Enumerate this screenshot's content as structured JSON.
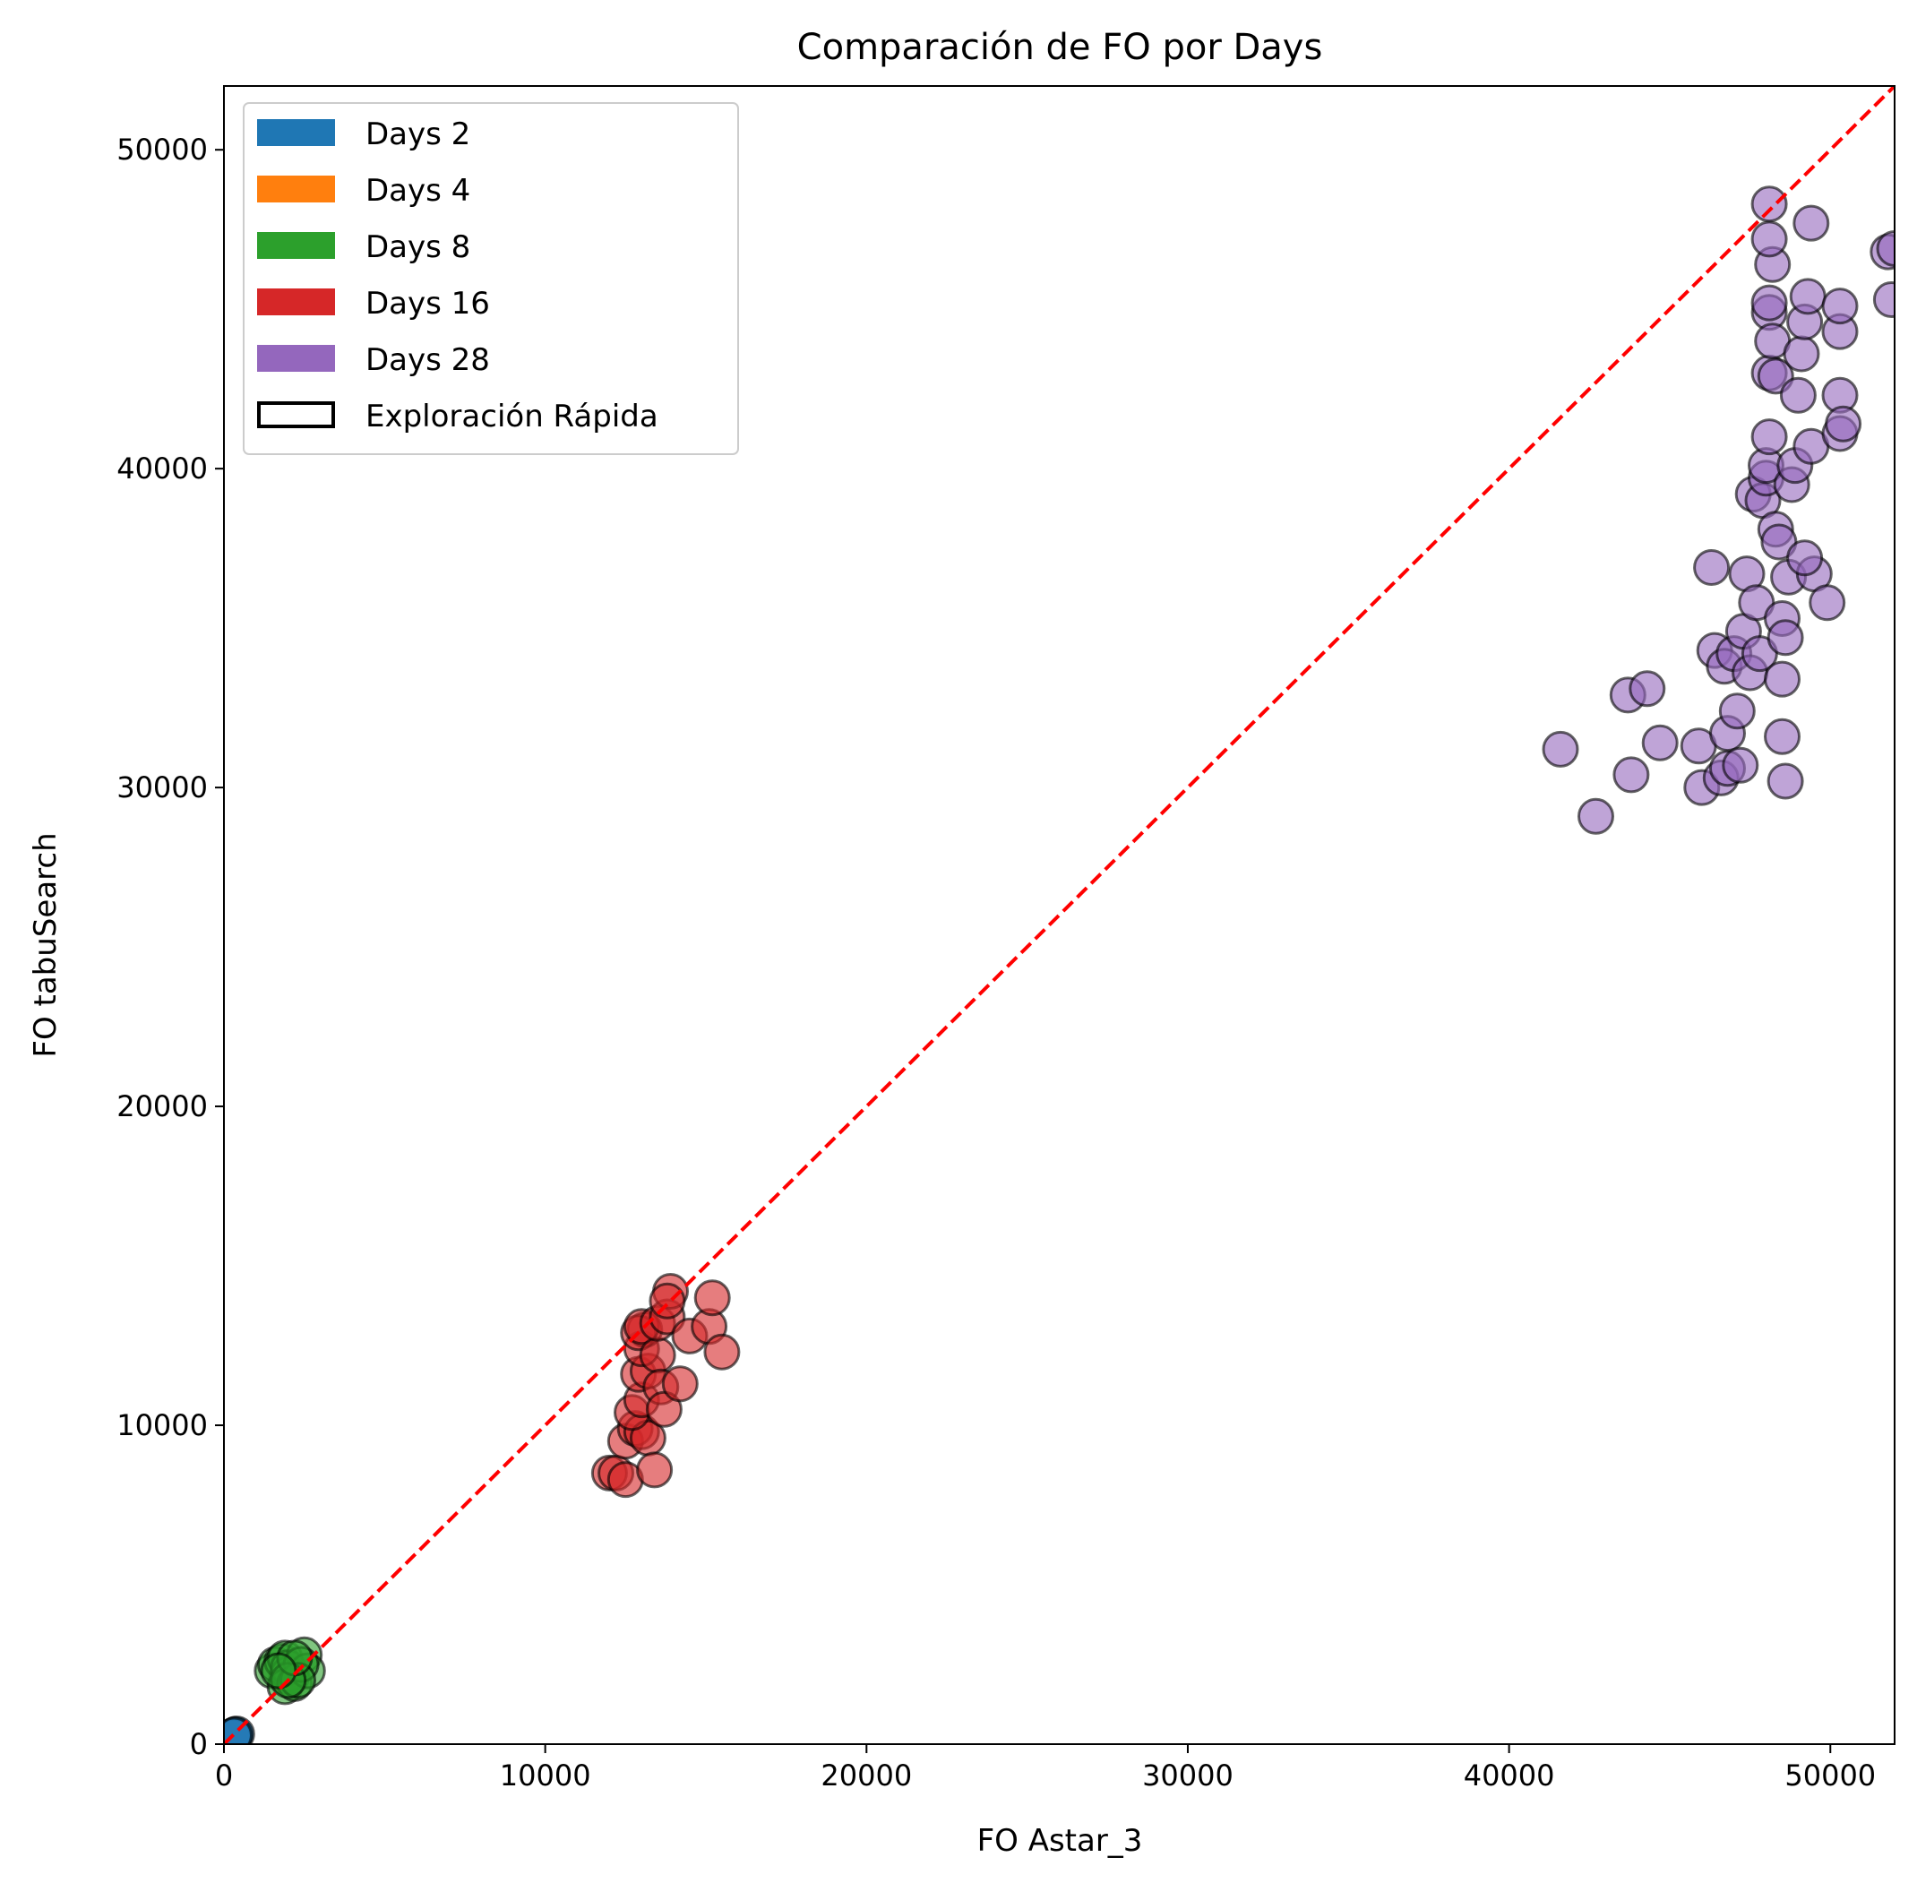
{
  "chart_data": {
    "type": "scatter",
    "title": "Comparación de FO por Days",
    "xlabel": "FO Astar_3",
    "ylabel": "FO tabuSearch",
    "xlim": [
      0,
      52000
    ],
    "ylim": [
      0,
      52000
    ],
    "xticks": [
      0,
      10000,
      20000,
      30000,
      40000,
      50000
    ],
    "yticks": [
      0,
      10000,
      20000,
      30000,
      40000,
      50000
    ],
    "grid": false,
    "legend_position": "top-left",
    "reference_line": {
      "style": "dashed",
      "color": "#ff0000",
      "from": [
        0,
        0
      ],
      "to": [
        52000,
        52000
      ]
    },
    "series": [
      {
        "name": "Days 2",
        "color": "#1f77b4",
        "points": [
          [
            300,
            250
          ],
          [
            350,
            300
          ],
          [
            400,
            320
          ],
          [
            320,
            280
          ]
        ]
      },
      {
        "name": "Days 4",
        "color": "#ff7f0e",
        "points": [
          [
            1950,
            2100
          ],
          [
            2000,
            2200
          ]
        ]
      },
      {
        "name": "Days 8",
        "color": "#2ca02c",
        "points": [
          [
            1500,
            2300
          ],
          [
            1600,
            2500
          ],
          [
            1800,
            2600
          ],
          [
            1900,
            2700
          ],
          [
            2000,
            2200
          ],
          [
            2100,
            2100
          ],
          [
            2000,
            2400
          ],
          [
            1900,
            1800
          ],
          [
            2200,
            1900
          ],
          [
            2500,
            2800
          ],
          [
            2600,
            2300
          ],
          [
            2400,
            2500
          ],
          [
            2300,
            2000
          ],
          [
            2000,
            2000
          ],
          [
            2200,
            2700
          ],
          [
            1700,
            2300
          ]
        ]
      },
      {
        "name": "Days 16",
        "color": "#d62728",
        "points": [
          [
            12000,
            8500
          ],
          [
            12200,
            8500
          ],
          [
            12500,
            8300
          ],
          [
            12500,
            9500
          ],
          [
            12800,
            9900
          ],
          [
            13000,
            9800
          ],
          [
            13200,
            9600
          ],
          [
            13400,
            8600
          ],
          [
            12700,
            10400
          ],
          [
            13000,
            10800
          ],
          [
            12900,
            11600
          ],
          [
            13200,
            11700
          ],
          [
            13000,
            12400
          ],
          [
            13100,
            13000
          ],
          [
            12900,
            12900
          ],
          [
            13000,
            13100
          ],
          [
            13500,
            12200
          ],
          [
            13600,
            11200
          ],
          [
            13700,
            10500
          ],
          [
            14200,
            11300
          ],
          [
            13500,
            13200
          ],
          [
            13800,
            13400
          ],
          [
            13900,
            14200
          ],
          [
            13800,
            13900
          ],
          [
            14500,
            12800
          ],
          [
            15100,
            13100
          ],
          [
            15200,
            14000
          ],
          [
            15500,
            12300
          ]
        ]
      },
      {
        "name": "Days 28",
        "color": "#9467bd",
        "points": [
          [
            41600,
            31200
          ],
          [
            42700,
            29100
          ],
          [
            43700,
            32900
          ],
          [
            43800,
            30400
          ],
          [
            44300,
            33100
          ],
          [
            44700,
            31400
          ],
          [
            45900,
            31300
          ],
          [
            46000,
            30000
          ],
          [
            46300,
            36900
          ],
          [
            46400,
            34300
          ],
          [
            46600,
            30300
          ],
          [
            46700,
            33800
          ],
          [
            46800,
            31700
          ],
          [
            46800,
            30600
          ],
          [
            47000,
            34200
          ],
          [
            47100,
            32400
          ],
          [
            47200,
            30700
          ],
          [
            47300,
            34900
          ],
          [
            47400,
            36700
          ],
          [
            47500,
            33600
          ],
          [
            47600,
            39200
          ],
          [
            47700,
            35800
          ],
          [
            47800,
            34200
          ],
          [
            47900,
            39000
          ],
          [
            48000,
            39700
          ],
          [
            48000,
            40100
          ],
          [
            48100,
            41000
          ],
          [
            48100,
            43000
          ],
          [
            48100,
            44900
          ],
          [
            48100,
            45200
          ],
          [
            48200,
            46400
          ],
          [
            48100,
            47200
          ],
          [
            48100,
            48300
          ],
          [
            48200,
            44000
          ],
          [
            48300,
            42900
          ],
          [
            48300,
            38100
          ],
          [
            48400,
            37700
          ],
          [
            48500,
            35300
          ],
          [
            48500,
            33400
          ],
          [
            48500,
            31600
          ],
          [
            48600,
            30200
          ],
          [
            48600,
            34700
          ],
          [
            48700,
            36600
          ],
          [
            48800,
            39500
          ],
          [
            48900,
            40100
          ],
          [
            49000,
            42300
          ],
          [
            49100,
            43600
          ],
          [
            49200,
            44600
          ],
          [
            49300,
            45400
          ],
          [
            49400,
            47700
          ],
          [
            49400,
            40700
          ],
          [
            49500,
            36700
          ],
          [
            49200,
            37200
          ],
          [
            49900,
            35800
          ],
          [
            50300,
            44300
          ],
          [
            50300,
            45100
          ],
          [
            50300,
            42300
          ],
          [
            50300,
            41100
          ],
          [
            50400,
            41400
          ],
          [
            51800,
            46800
          ],
          [
            51900,
            45300
          ],
          [
            52000,
            46900
          ]
        ]
      }
    ],
    "extra_legend": [
      {
        "name": "Exploración Rápida",
        "style": "outlined-box"
      }
    ]
  }
}
